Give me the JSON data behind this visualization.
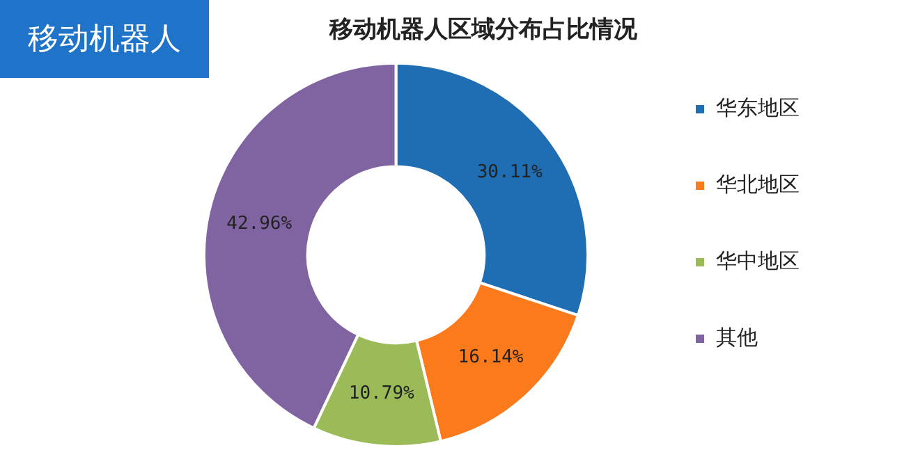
{
  "chart_data": {
    "type": "donut",
    "title": "移动机器人区域分布占比情况",
    "annotations": [
      "移动机器人"
    ],
    "categories": [
      "华东地区",
      "华北地区",
      "华中地区",
      "其他"
    ],
    "values": [
      30.11,
      16.14,
      10.79,
      42.96
    ],
    "value_labels": [
      "30.11%",
      "16.14%",
      "10.79%",
      "42.96%"
    ],
    "colors": [
      "#1f6eb4",
      "#fb7a1c",
      "#9bbb59",
      "#8064a2"
    ],
    "legend": "right"
  }
}
